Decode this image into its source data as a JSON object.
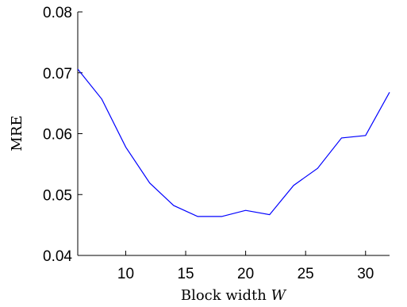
{
  "chart_data": {
    "type": "line",
    "title": "",
    "xlabel": "Block width",
    "xlabel_symbol": "W",
    "ylabel": "MRE",
    "xlim": [
      6,
      32
    ],
    "ylim": [
      0.04,
      0.08
    ],
    "x_ticks": [
      10,
      15,
      20,
      25,
      30
    ],
    "x_tick_labels": [
      "10",
      "15",
      "20",
      "25",
      "30"
    ],
    "y_ticks": [
      0.04,
      0.05,
      0.06,
      0.07,
      0.08
    ],
    "y_tick_labels": [
      "0.04",
      "0.05",
      "0.06",
      "0.07",
      "0.08"
    ],
    "grid": false,
    "series": [
      {
        "color": "#0000ff",
        "x": [
          6,
          8,
          10,
          12,
          14,
          16,
          18,
          20,
          22,
          24,
          26,
          28,
          30,
          32
        ],
        "values": [
          0.0706,
          0.0657,
          0.0578,
          0.0519,
          0.0482,
          0.0464,
          0.0464,
          0.0474,
          0.0467,
          0.0515,
          0.0543,
          0.0593,
          0.0597,
          0.0668
        ]
      }
    ]
  }
}
